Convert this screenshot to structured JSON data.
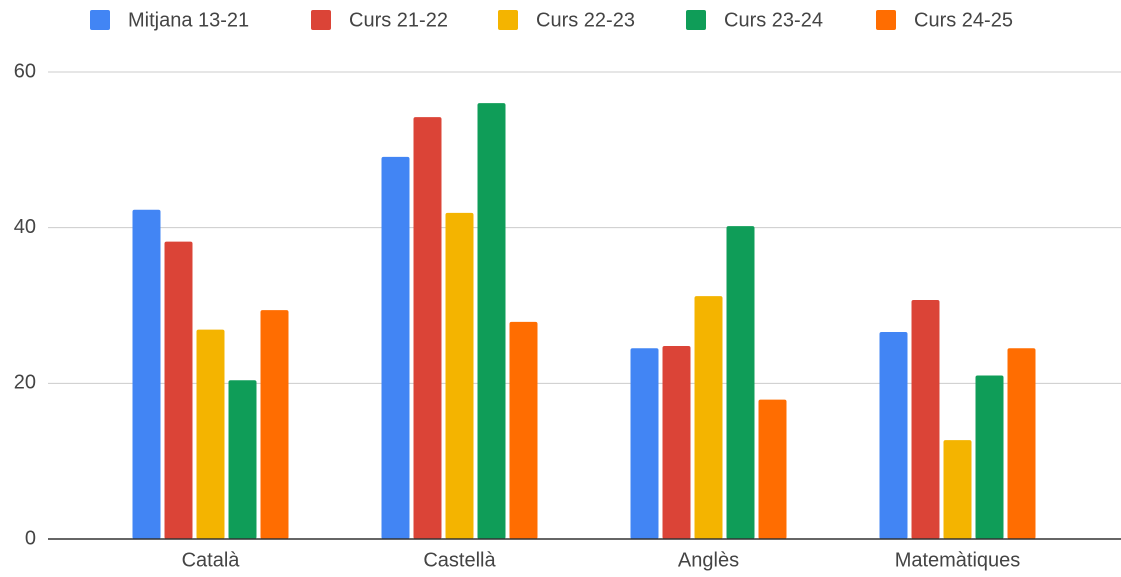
{
  "chart_data": {
    "type": "bar",
    "categories": [
      "Català",
      "Castellà",
      "Anglès",
      "Matemàtiques"
    ],
    "series": [
      {
        "name": "Mitjana 13-21",
        "color": "#4285f4",
        "values": [
          42.3,
          49.1,
          24.5,
          26.6
        ]
      },
      {
        "name": "Curs 21-22",
        "color": "#db4437",
        "values": [
          38.2,
          54.2,
          24.8,
          30.7
        ]
      },
      {
        "name": "Curs 22-23",
        "color": "#f4b400",
        "values": [
          26.9,
          41.9,
          31.2,
          12.7
        ]
      },
      {
        "name": "Curs 23-24",
        "color": "#0f9d58",
        "values": [
          20.4,
          56.0,
          40.2,
          21.0
        ]
      },
      {
        "name": "Curs 24-25",
        "color": "#ff6d01",
        "values": [
          29.4,
          27.9,
          17.9,
          24.5
        ]
      }
    ],
    "ylim": [
      0,
      60
    ],
    "yticks": [
      0,
      20,
      40,
      60
    ],
    "grid": true,
    "legend": "top"
  }
}
